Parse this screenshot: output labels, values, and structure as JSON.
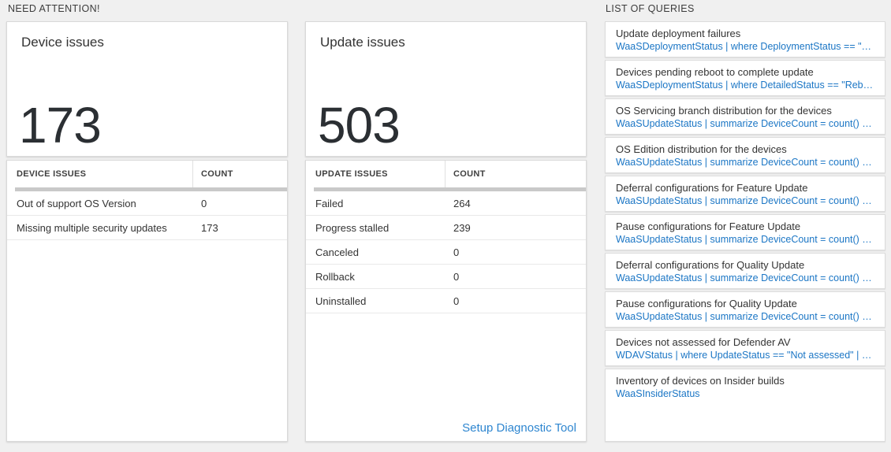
{
  "colors": {
    "page_background": "#f0f0f0",
    "link_blue": "#1b76c5",
    "setup_link_blue": "#2e86d0",
    "number_dark": "#2b2f33",
    "grey_bar": "#c9c9c9"
  },
  "need_attention": {
    "title": "NEED ATTENTION!",
    "device_tile": {
      "title": "Device issues",
      "total": "173",
      "table": {
        "columns": [
          "DEVICE ISSUES",
          "COUNT"
        ],
        "rows": [
          {
            "label": "Out of support OS Version",
            "count": "0"
          },
          {
            "label": "Missing multiple security updates",
            "count": "173"
          }
        ]
      }
    },
    "update_tile": {
      "title": "Update issues",
      "total": "503",
      "table": {
        "columns": [
          "UPDATE ISSUES",
          "COUNT"
        ],
        "rows": [
          {
            "label": "Failed",
            "count": "264"
          },
          {
            "label": "Progress stalled",
            "count": "239"
          },
          {
            "label": "Canceled",
            "count": "0"
          },
          {
            "label": "Rollback",
            "count": "0"
          },
          {
            "label": "Uninstalled",
            "count": "0"
          }
        ]
      },
      "footer_link": "Setup Diagnostic Tool"
    }
  },
  "query_list": {
    "title": "LIST OF QUERIES",
    "items": [
      {
        "title": "Update deployment failures",
        "query": "WaaSDeploymentStatus | where DeploymentStatus == \"Failed\" |..."
      },
      {
        "title": "Devices pending reboot to complete update",
        "query": "WaaSDeploymentStatus | where DetailedStatus == \"Reboot pend..."
      },
      {
        "title": "OS Servicing branch distribution for the devices",
        "query": "WaaSUpdateStatus | summarize DeviceCount = count() by OSSer..."
      },
      {
        "title": "OS Edition distribution for the devices",
        "query": "WaaSUpdateStatus | summarize DeviceCount = count() by OSEdit..."
      },
      {
        "title": "Deferral configurations for Feature Update",
        "query": "WaaSUpdateStatus | summarize DeviceCount = count() by Featur..."
      },
      {
        "title": "Pause configurations for Feature Update",
        "query": "WaaSUpdateStatus | summarize DeviceCount = count() by Featur..."
      },
      {
        "title": "Deferral configurations for Quality Update",
        "query": "WaaSUpdateStatus | summarize DeviceCount = count() by Qualit..."
      },
      {
        "title": "Pause configurations for Quality Update",
        "query": "WaaSUpdateStatus | summarize DeviceCount = count() by Qualit..."
      },
      {
        "title": "Devices not assessed for Defender AV",
        "query": "WDAVStatus | where UpdateStatus == \"Not assessed\" | render ta..."
      },
      {
        "title": "Inventory of devices on Insider builds",
        "query": "WaaSInsiderStatus"
      }
    ]
  }
}
